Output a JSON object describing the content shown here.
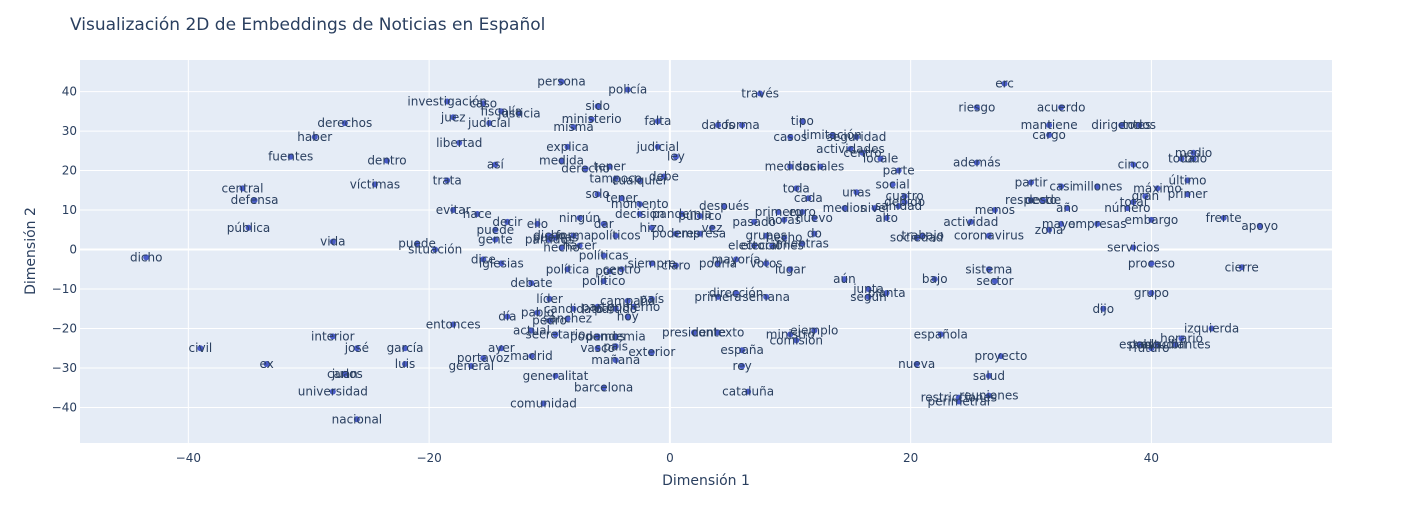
{
  "chart_data": {
    "type": "scatter",
    "title": "Visualización 2D de Embeddings de Noticias en Español",
    "xlabel": "Dimensión 1",
    "ylabel": "Dimensión 2",
    "xlim": [
      -49,
      55
    ],
    "ylim": [
      -49,
      48
    ],
    "xticks": [
      -40,
      -20,
      0,
      20,
      40
    ],
    "yticks": [
      -40,
      -30,
      -20,
      -10,
      0,
      10,
      20,
      30,
      40
    ],
    "grid": true,
    "marker_color": "#4a5cc8",
    "plot_bg": "#e5ecf6",
    "points": [
      {
        "label": "persona",
        "x": -9,
        "y": 42.5
      },
      {
        "label": "policía",
        "x": -3.5,
        "y": 40.5
      },
      {
        "label": "través",
        "x": 7.5,
        "y": 39.5
      },
      {
        "label": "erc",
        "x": 27.8,
        "y": 42
      },
      {
        "label": "investigación",
        "x": -18.5,
        "y": 37.5
      },
      {
        "label": "caso",
        "x": -15.5,
        "y": 37
      },
      {
        "label": "sido",
        "x": -6,
        "y": 36.3
      },
      {
        "label": "riesgo",
        "x": 25.5,
        "y": 36
      },
      {
        "label": "acuerdo",
        "x": 32.5,
        "y": 36
      },
      {
        "label": "juez",
        "x": -18,
        "y": 33.5
      },
      {
        "label": "fiscalía",
        "x": -14,
        "y": 35
      },
      {
        "label": "justicia",
        "x": -12.5,
        "y": 34.5
      },
      {
        "label": "judicial",
        "x": -15,
        "y": 32
      },
      {
        "label": "ministerio",
        "x": -6.5,
        "y": 33
      },
      {
        "label": "falta",
        "x": -1,
        "y": 32.5
      },
      {
        "label": "tipo",
        "x": 11,
        "y": 32.5
      },
      {
        "label": "derechos",
        "x": -27,
        "y": 32
      },
      {
        "label": "misma",
        "x": -8,
        "y": 31
      },
      {
        "label": "datos",
        "x": 4,
        "y": 31.5
      },
      {
        "label": "forma",
        "x": 6,
        "y": 31.5
      },
      {
        "label": "mantiene",
        "x": 31.5,
        "y": 31.5
      },
      {
        "label": "dirigentes",
        "x": 37.5,
        "y": 31.5
      },
      {
        "label": "todos",
        "x": 39,
        "y": 31.5
      },
      {
        "label": "haber",
        "x": -29.5,
        "y": 28.5
      },
      {
        "label": "casos",
        "x": 10,
        "y": 28.5
      },
      {
        "label": "limitación",
        "x": 13.5,
        "y": 29
      },
      {
        "label": "seguridad",
        "x": 15.5,
        "y": 28.5
      },
      {
        "label": "cargo",
        "x": 31.5,
        "y": 29
      },
      {
        "label": "libertad",
        "x": -17.5,
        "y": 27
      },
      {
        "label": "explica",
        "x": -8.5,
        "y": 26
      },
      {
        "label": "judicial",
        "x": -1,
        "y": 26
      },
      {
        "label": "actividades",
        "x": 15,
        "y": 25.5
      },
      {
        "label": "fuentes",
        "x": -31.5,
        "y": 23.5
      },
      {
        "label": "ley",
        "x": 0.5,
        "y": 23.5
      },
      {
        "label": "centro",
        "x": 16,
        "y": 24.5
      },
      {
        "label": "locale",
        "x": 17.5,
        "y": 23
      },
      {
        "label": "medio",
        "x": 43.5,
        "y": 24.5
      },
      {
        "label": "dentro",
        "x": -23.5,
        "y": 22.5
      },
      {
        "label": "así",
        "x": -14.5,
        "y": 21.5
      },
      {
        "label": "medida",
        "x": -9,
        "y": 22.5
      },
      {
        "label": "tener",
        "x": -5,
        "y": 21
      },
      {
        "label": "derecho",
        "x": -7,
        "y": 20.5
      },
      {
        "label": "medidas",
        "x": 10,
        "y": 21
      },
      {
        "label": "sociales",
        "x": 12.5,
        "y": 21
      },
      {
        "label": "además",
        "x": 25.5,
        "y": 22
      },
      {
        "label": "cinco",
        "x": 38.5,
        "y": 21.5
      },
      {
        "label": "toda",
        "x": 42.5,
        "y": 23
      },
      {
        "label": "todo",
        "x": 43.5,
        "y": 23
      },
      {
        "label": "trata",
        "x": -18.5,
        "y": 17.5
      },
      {
        "label": "tampoco",
        "x": -4.5,
        "y": 18
      },
      {
        "label": "debe",
        "x": -0.5,
        "y": 18.5
      },
      {
        "label": "cualquier",
        "x": -2.5,
        "y": 17.5
      },
      {
        "label": "parte",
        "x": 19,
        "y": 20
      },
      {
        "label": "social",
        "x": 18.5,
        "y": 16.5
      },
      {
        "label": "partir",
        "x": 30,
        "y": 17
      },
      {
        "label": "casi",
        "x": 32.5,
        "y": 16
      },
      {
        "label": "millones",
        "x": 35.5,
        "y": 16
      },
      {
        "label": "máximo",
        "x": 40.5,
        "y": 15.5
      },
      {
        "label": "último",
        "x": 43,
        "y": 17.5
      },
      {
        "label": "central",
        "x": -35.5,
        "y": 15.5
      },
      {
        "label": "víctimas",
        "x": -24.5,
        "y": 16.5
      },
      {
        "label": "toda",
        "x": 10.5,
        "y": 15.5
      },
      {
        "label": "unas",
        "x": 15.5,
        "y": 14.5
      },
      {
        "label": "cuatro",
        "x": 19.5,
        "y": 13.5
      },
      {
        "label": "gran",
        "x": 39.5,
        "y": 13.5
      },
      {
        "label": "primer",
        "x": 43,
        "y": 14
      },
      {
        "label": "defensa",
        "x": -34.5,
        "y": 12.5
      },
      {
        "label": "solo",
        "x": -6,
        "y": 14
      },
      {
        "label": "tener",
        "x": -4,
        "y": 13
      },
      {
        "label": "cada",
        "x": 11.5,
        "y": 13
      },
      {
        "label": "debido",
        "x": 19.5,
        "y": 12
      },
      {
        "label": "respecto",
        "x": 30,
        "y": 12.5
      },
      {
        "label": "desde",
        "x": 31,
        "y": 12.5
      },
      {
        "label": "total",
        "x": 38.5,
        "y": 12
      },
      {
        "label": "momento",
        "x": -2.5,
        "y": 11.5
      },
      {
        "label": "después",
        "x": 4.5,
        "y": 11
      },
      {
        "label": "medios",
        "x": 14.5,
        "y": 10.5
      },
      {
        "label": "nivel",
        "x": 17,
        "y": 10.5
      },
      {
        "label": "sanidad",
        "x": 19,
        "y": 11
      },
      {
        "label": "menos",
        "x": 27,
        "y": 10
      },
      {
        "label": "año",
        "x": 33,
        "y": 10.5
      },
      {
        "label": "número",
        "x": 38,
        "y": 10.5
      },
      {
        "label": "evitar",
        "x": -18,
        "y": 10
      },
      {
        "label": "hace",
        "x": -16,
        "y": 9
      },
      {
        "label": "decir",
        "x": -13.5,
        "y": 7
      },
      {
        "label": "ningún",
        "x": -7.5,
        "y": 8
      },
      {
        "label": "decisión",
        "x": -2.5,
        "y": 9
      },
      {
        "label": "pandemia",
        "x": 1,
        "y": 9
      },
      {
        "label": "público",
        "x": 2.5,
        "y": 8.5
      },
      {
        "label": "primero",
        "x": 9,
        "y": 9.5
      },
      {
        "label": "euro",
        "x": 11,
        "y": 9.5
      },
      {
        "label": "pasado",
        "x": 7,
        "y": 7
      },
      {
        "label": "horas",
        "x": 9.5,
        "y": 7.5
      },
      {
        "label": "nuevo",
        "x": 12,
        "y": 8
      },
      {
        "label": "alto",
        "x": 18,
        "y": 8
      },
      {
        "label": "frente",
        "x": 46,
        "y": 8
      },
      {
        "label": "embargo",
        "x": 40,
        "y": 7.5
      },
      {
        "label": "pública",
        "x": -35,
        "y": 5.5
      },
      {
        "label": "ello",
        "x": -11,
        "y": 6.5
      },
      {
        "label": "dar",
        "x": -5.5,
        "y": 6.5
      },
      {
        "label": "hizo",
        "x": -1.5,
        "y": 5.5
      },
      {
        "label": "vez",
        "x": 3.5,
        "y": 5.5
      },
      {
        "label": "actividad",
        "x": 25,
        "y": 7
      },
      {
        "label": "mayor",
        "x": 32.5,
        "y": 6.5
      },
      {
        "label": "empresas",
        "x": 35.5,
        "y": 6.5
      },
      {
        "label": "zona",
        "x": 31.5,
        "y": 5
      },
      {
        "label": "apoyo",
        "x": 49,
        "y": 6
      },
      {
        "label": "puede",
        "x": -14.5,
        "y": 5
      },
      {
        "label": "dicho",
        "x": -10,
        "y": 3.5
      },
      {
        "label": "puertas",
        "x": -9.5,
        "y": 3
      },
      {
        "label": "forma",
        "x": -8,
        "y": 3.5
      },
      {
        "label": "políticos",
        "x": -4.5,
        "y": 3.5
      },
      {
        "label": "poderes",
        "x": 0.5,
        "y": 4
      },
      {
        "label": "empresa",
        "x": 2.5,
        "y": 4
      },
      {
        "label": "grupos",
        "x": 8,
        "y": 3.5
      },
      {
        "label": "hecho",
        "x": 9.5,
        "y": 3
      },
      {
        "label": "do",
        "x": 12,
        "y": 4
      },
      {
        "label": "trabajo",
        "x": 21,
        "y": 3.5
      },
      {
        "label": "sociedad",
        "x": 20.5,
        "y": 3
      },
      {
        "label": "coronavirus",
        "x": 26.5,
        "y": 3.5
      },
      {
        "label": "vida",
        "x": -28,
        "y": 2
      },
      {
        "label": "gente",
        "x": -14.5,
        "y": 2.5
      },
      {
        "label": "partidos",
        "x": -10,
        "y": 2.5
      },
      {
        "label": "hacer",
        "x": -7.5,
        "y": 1
      },
      {
        "label": "hecho",
        "x": -9,
        "y": 0.5
      },
      {
        "label": "electoral",
        "x": 7,
        "y": 1
      },
      {
        "label": "elecciones",
        "x": 8.5,
        "y": 1
      },
      {
        "label": "mientras",
        "x": 11,
        "y": 1.5
      },
      {
        "label": "servicios",
        "x": 38.5,
        "y": 0.5
      },
      {
        "label": "puede",
        "x": -21,
        "y": 1.5
      },
      {
        "label": "situación",
        "x": -19.5,
        "y": 0
      },
      {
        "label": "dice",
        "x": -15.5,
        "y": -2.5
      },
      {
        "label": "iglesias",
        "x": -14,
        "y": -3.5
      },
      {
        "label": "claro",
        "x": 0.5,
        "y": -4
      },
      {
        "label": "siempre",
        "x": -1.5,
        "y": -3.5
      },
      {
        "label": "podría",
        "x": 4,
        "y": -3.5
      },
      {
        "label": "mayoría",
        "x": 5.5,
        "y": -2.5
      },
      {
        "label": "votos",
        "x": 8,
        "y": -3.5
      },
      {
        "label": "proceso",
        "x": 40,
        "y": -3.5
      },
      {
        "label": "cierre",
        "x": 47.5,
        "y": -4.5
      },
      {
        "label": "dicho",
        "x": -43.5,
        "y": -2
      },
      {
        "label": "políticas",
        "x": -5.5,
        "y": -1.5
      },
      {
        "label": "política",
        "x": -8.5,
        "y": -5
      },
      {
        "label": "poco",
        "x": -5,
        "y": -5.5
      },
      {
        "label": "centro",
        "x": -4,
        "y": -5
      },
      {
        "label": "lugar",
        "x": 10,
        "y": -5
      },
      {
        "label": "sistema",
        "x": 26.5,
        "y": -5
      },
      {
        "label": "político",
        "x": -5.5,
        "y": -8
      },
      {
        "label": "debate",
        "x": -11.5,
        "y": -8.5
      },
      {
        "label": "aún",
        "x": 14.5,
        "y": -7.5
      },
      {
        "label": "bajo",
        "x": 22,
        "y": -7.5
      },
      {
        "label": "sector",
        "x": 27,
        "y": -8
      },
      {
        "label": "junta",
        "x": 16.5,
        "y": -10
      },
      {
        "label": "planta",
        "x": 18,
        "y": -11
      },
      {
        "label": "según",
        "x": 16.5,
        "y": -12
      },
      {
        "label": "dirección",
        "x": 5.5,
        "y": -11
      },
      {
        "label": "primera",
        "x": 4,
        "y": -12
      },
      {
        "label": "semana",
        "x": 8,
        "y": -12
      },
      {
        "label": "grupo",
        "x": 40,
        "y": -11
      },
      {
        "label": "líder",
        "x": -10,
        "y": -12.5
      },
      {
        "label": "campaña",
        "x": -3.5,
        "y": -13
      },
      {
        "label": "país",
        "x": -1.5,
        "y": -12.5
      },
      {
        "label": "candidato",
        "x": -8,
        "y": -15
      },
      {
        "label": "parte",
        "x": -6,
        "y": -14.5
      },
      {
        "label": "partido",
        "x": -4.5,
        "y": -15
      },
      {
        "label": "gobierno",
        "x": -3,
        "y": -14.5
      },
      {
        "label": "dijo",
        "x": 36,
        "y": -15
      },
      {
        "label": "pablo",
        "x": -11,
        "y": -16
      },
      {
        "label": "día",
        "x": -13.5,
        "y": -17
      },
      {
        "label": "sánchez",
        "x": -8.5,
        "y": -17.5
      },
      {
        "label": "pedro",
        "x": -10,
        "y": -18
      },
      {
        "label": "hoy",
        "x": -3.5,
        "y": -17
      },
      {
        "label": "izquierda",
        "x": 45,
        "y": -20
      },
      {
        "label": "entonces",
        "x": -18,
        "y": -19
      },
      {
        "label": "actual",
        "x": -11.5,
        "y": -20.5
      },
      {
        "label": "presidente",
        "x": 2,
        "y": -21
      },
      {
        "label": "ejemplo",
        "x": 12,
        "y": -20.5
      },
      {
        "label": "española",
        "x": 22.5,
        "y": -21.5
      },
      {
        "label": "horario",
        "x": 42.5,
        "y": -22.5
      },
      {
        "label": "interior",
        "x": -28,
        "y": -22
      },
      {
        "label": "secretario",
        "x": -9.5,
        "y": -21.5
      },
      {
        "label": "podemos",
        "x": -6,
        "y": -22
      },
      {
        "label": "pandemia",
        "x": -4.5,
        "y": -22
      },
      {
        "label": "contexto",
        "x": 4,
        "y": -21
      },
      {
        "label": "ministro",
        "x": 10,
        "y": -21.5
      },
      {
        "label": "comisión",
        "x": 10.5,
        "y": -23
      },
      {
        "label": "estado",
        "x": 39,
        "y": -24
      },
      {
        "label": "población",
        "x": 40.5,
        "y": -24
      },
      {
        "label": "estudiantes",
        "x": 42,
        "y": -24
      },
      {
        "label": "futuro",
        "x": 40,
        "y": -25
      },
      {
        "label": "civil",
        "x": -39,
        "y": -25
      },
      {
        "label": "josé",
        "x": -26,
        "y": -25
      },
      {
        "label": "garcía",
        "x": -22,
        "y": -25
      },
      {
        "label": "ayer",
        "x": -14,
        "y": -25
      },
      {
        "label": "vasco",
        "x": -6,
        "y": -25
      },
      {
        "label": "país",
        "x": -4.5,
        "y": -24.5
      },
      {
        "label": "exterior",
        "x": -1.5,
        "y": -26
      },
      {
        "label": "españa",
        "x": 6,
        "y": -25.5
      },
      {
        "label": "proyecto",
        "x": 27.5,
        "y": -27
      },
      {
        "label": "portavoz",
        "x": -15.5,
        "y": -27.5
      },
      {
        "label": "madrid",
        "x": -11.5,
        "y": -27
      },
      {
        "label": "mañana",
        "x": -4.5,
        "y": -28
      },
      {
        "label": "nueva",
        "x": 20.5,
        "y": -29
      },
      {
        "label": "ex",
        "x": -33.5,
        "y": -29
      },
      {
        "label": "luis",
        "x": -22,
        "y": -29
      },
      {
        "label": "general",
        "x": -16.5,
        "y": -29.5
      },
      {
        "label": "rey",
        "x": 6,
        "y": -29.5
      },
      {
        "label": "carlos",
        "x": -27,
        "y": -31.5
      },
      {
        "label": "juan",
        "x": -27,
        "y": -31.5
      },
      {
        "label": "generalitat",
        "x": -9.5,
        "y": -32
      },
      {
        "label": "salud",
        "x": 26.5,
        "y": -32
      },
      {
        "label": "barcelona",
        "x": -5.5,
        "y": -35
      },
      {
        "label": "cataluña",
        "x": 6.5,
        "y": -36
      },
      {
        "label": "universidad",
        "x": -28,
        "y": -36
      },
      {
        "label": "reuniones",
        "x": 26.5,
        "y": -37
      },
      {
        "label": "restricciones",
        "x": 24,
        "y": -37.5
      },
      {
        "label": "perimetral",
        "x": 24,
        "y": -38.5
      },
      {
        "label": "comunidad",
        "x": -10.5,
        "y": -39
      },
      {
        "label": "nacional",
        "x": -26,
        "y": -43
      }
    ]
  }
}
